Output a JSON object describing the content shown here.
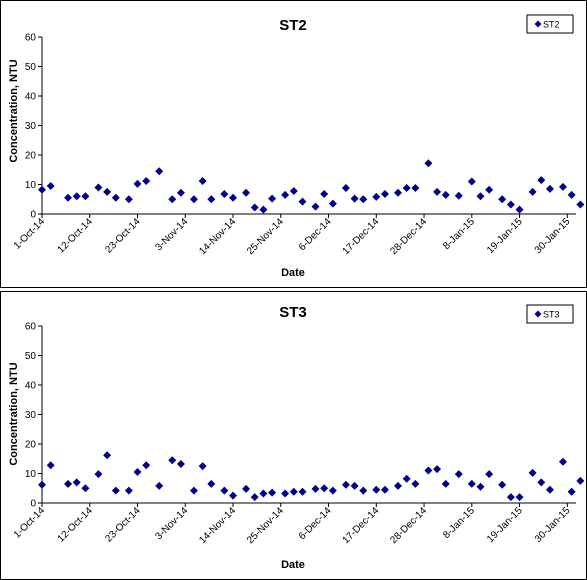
{
  "chart_data": [
    {
      "type": "scatter",
      "title": "ST2",
      "xlabel": "Date",
      "ylabel": "Concentration, NTU",
      "ylim": [
        0,
        60
      ],
      "yticks": [
        0,
        10,
        20,
        30,
        40,
        50,
        60
      ],
      "xlim": [
        "2014-10-01",
        "2015-02-01"
      ],
      "xtick_labels": [
        "1-Oct-14",
        "12-Oct-14",
        "23-Oct-14",
        "3-Nov-14",
        "14-Nov-14",
        "25-Nov-14",
        "6-Dec-14",
        "17-Dec-14",
        "28-Dec-14",
        "8-Jan-15",
        "19-Jan-15",
        "30-Jan-15"
      ],
      "legend": "top-right",
      "grid": false,
      "marker_color": "#00008B",
      "series": [
        {
          "name": "ST2",
          "x": [
            "2014-10-01",
            "2014-10-03",
            "2014-10-07",
            "2014-10-09",
            "2014-10-11",
            "2014-10-14",
            "2014-10-16",
            "2014-10-18",
            "2014-10-21",
            "2014-10-23",
            "2014-10-25",
            "2014-10-28",
            "2014-10-31",
            "2014-11-02",
            "2014-11-05",
            "2014-11-07",
            "2014-11-09",
            "2014-11-12",
            "2014-11-14",
            "2014-11-17",
            "2014-11-19",
            "2014-11-21",
            "2014-11-23",
            "2014-11-26",
            "2014-11-28",
            "2014-11-30",
            "2014-12-03",
            "2014-12-05",
            "2014-12-07",
            "2014-12-10",
            "2014-12-12",
            "2014-12-14",
            "2014-12-17",
            "2014-12-19",
            "2014-12-22",
            "2014-12-24",
            "2014-12-26",
            "2014-12-29",
            "2014-12-31",
            "2015-01-02",
            "2015-01-05",
            "2015-01-08",
            "2015-01-10",
            "2015-01-12",
            "2015-01-15",
            "2015-01-17",
            "2015-01-19",
            "2015-01-22",
            "2015-01-24",
            "2015-01-26",
            "2015-01-29",
            "2015-01-31",
            "2015-02-02"
          ],
          "y": [
            8.2,
            9.5,
            5.5,
            6,
            6,
            9,
            7.5,
            5.5,
            5,
            10.2,
            11.2,
            14.5,
            5,
            7.2,
            5,
            11.2,
            5,
            6.8,
            5.5,
            7.2,
            2.2,
            1.5,
            5.2,
            6.5,
            7.8,
            4.2,
            2.5,
            6.8,
            3.5,
            8.8,
            5.2,
            5,
            5.8,
            6.8,
            7.2,
            8.8,
            8.8,
            17.2,
            7.5,
            6.5,
            6.2,
            11,
            6,
            8.2,
            5,
            3.2,
            1.5,
            7.5,
            11.5,
            8.5,
            9.2,
            6.5,
            3.2
          ]
        }
      ]
    },
    {
      "type": "scatter",
      "title": "ST3",
      "xlabel": "Date",
      "ylabel": "Concentration, NTU",
      "ylim": [
        0,
        60
      ],
      "yticks": [
        0,
        10,
        20,
        30,
        40,
        50,
        60
      ],
      "xlim": [
        "2014-10-01",
        "2015-02-01"
      ],
      "xtick_labels": [
        "1-Oct-14",
        "12-Oct-14",
        "23-Oct-14",
        "3-Nov-14",
        "14-Nov-14",
        "25-Nov-14",
        "6-Dec-14",
        "17-Dec-14",
        "28-Dec-14",
        "8-Jan-15",
        "19-Jan-15",
        "30-Jan-15"
      ],
      "legend": "top-right",
      "grid": false,
      "marker_color": "#00008B",
      "series": [
        {
          "name": "ST3",
          "x": [
            "2014-10-01",
            "2014-10-03",
            "2014-10-07",
            "2014-10-09",
            "2014-10-11",
            "2014-10-14",
            "2014-10-16",
            "2014-10-18",
            "2014-10-21",
            "2014-10-23",
            "2014-10-25",
            "2014-10-28",
            "2014-10-31",
            "2014-11-02",
            "2014-11-05",
            "2014-11-07",
            "2014-11-09",
            "2014-11-12",
            "2014-11-14",
            "2014-11-17",
            "2014-11-19",
            "2014-11-21",
            "2014-11-23",
            "2014-11-26",
            "2014-11-28",
            "2014-11-30",
            "2014-12-03",
            "2014-12-05",
            "2014-12-07",
            "2014-12-10",
            "2014-12-12",
            "2014-12-14",
            "2014-12-17",
            "2014-12-19",
            "2014-12-22",
            "2014-12-24",
            "2014-12-26",
            "2014-12-29",
            "2014-12-31",
            "2015-01-02",
            "2015-01-05",
            "2015-01-08",
            "2015-01-10",
            "2015-01-12",
            "2015-01-15",
            "2015-01-17",
            "2015-01-19",
            "2015-01-22",
            "2015-01-24",
            "2015-01-26",
            "2015-01-29",
            "2015-01-31",
            "2015-02-02"
          ],
          "y": [
            6.2,
            12.8,
            6.5,
            7,
            5,
            9.8,
            16.2,
            4.2,
            4.2,
            10.5,
            12.8,
            5.8,
            14.5,
            13.2,
            4.2,
            12.5,
            6.5,
            4.2,
            2.5,
            4.8,
            2,
            3.2,
            3.5,
            3.2,
            3.8,
            3.8,
            4.8,
            5,
            4.2,
            6.2,
            5.8,
            4.2,
            4.5,
            4.5,
            5.8,
            8.2,
            6.5,
            11,
            11.5,
            6.5,
            9.8,
            6.5,
            5.5,
            9.8,
            6.2,
            2,
            2,
            10.2,
            7,
            4.5,
            14,
            3.8,
            7.5
          ]
        }
      ]
    }
  ]
}
